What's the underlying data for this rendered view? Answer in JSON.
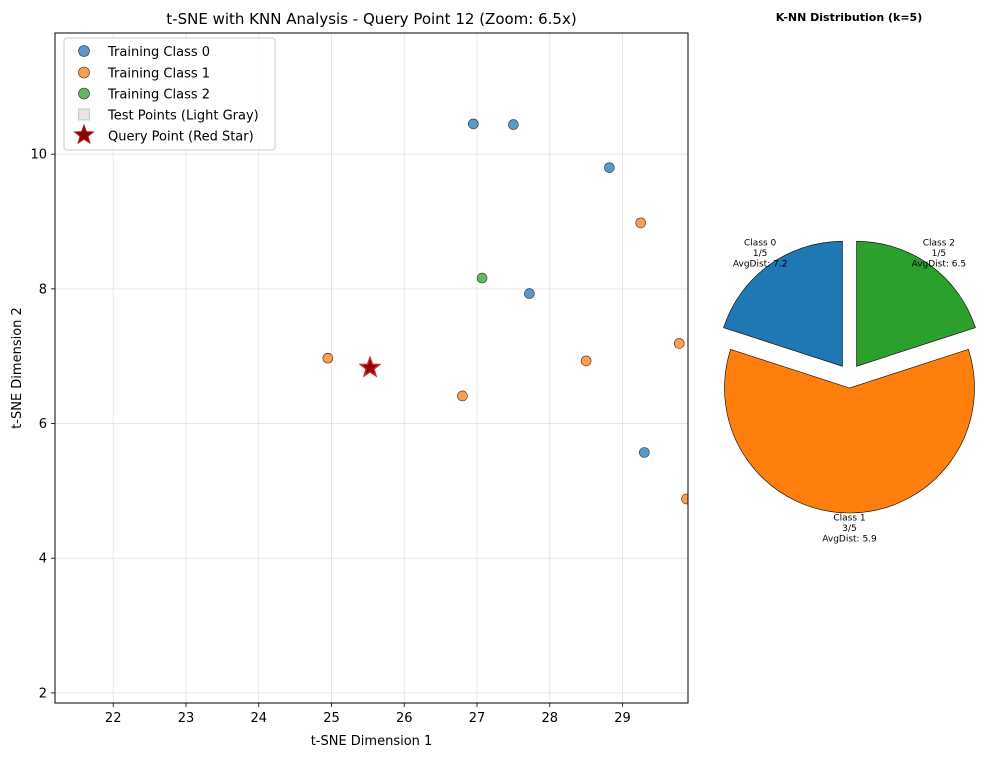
{
  "chart_data": [
    {
      "type": "scatter",
      "title": "t-SNE with KNN Analysis - Query Point 12 (Zoom: 6.5x)",
      "xlabel": "t-SNE Dimension 1",
      "ylabel": "t-SNE Dimension 2",
      "xlim": [
        21.2,
        29.9
      ],
      "ylim": [
        1.85,
        11.8
      ],
      "xticks": [
        22,
        23,
        24,
        25,
        26,
        27,
        28,
        29
      ],
      "yticks": [
        2,
        4,
        6,
        8,
        10
      ],
      "grid": true,
      "legend_placement": "top-left",
      "series": [
        {
          "name": "Training Class 0",
          "color": "#1f77b4",
          "marker": "circle",
          "points": [
            [
              26.95,
              10.45
            ],
            [
              27.5,
              10.44
            ],
            [
              28.82,
              9.8
            ],
            [
              27.72,
              7.93
            ],
            [
              29.3,
              5.57
            ]
          ]
        },
        {
          "name": "Training Class 1",
          "color": "#ff7f0e",
          "marker": "circle",
          "points": [
            [
              29.25,
              8.98
            ],
            [
              24.95,
              6.97
            ],
            [
              28.5,
              6.93
            ],
            [
              29.78,
              7.19
            ],
            [
              26.8,
              6.41
            ],
            [
              29.88,
              4.88
            ]
          ]
        },
        {
          "name": "Training Class 2",
          "color": "#2ca02c",
          "marker": "circle",
          "points": [
            [
              27.07,
              8.16
            ]
          ]
        },
        {
          "name": "Test Points (Light Gray)",
          "color": "#d3d3d3",
          "marker": "square",
          "points": []
        },
        {
          "name": "Query Point (Red Star)",
          "color": "#8b0000",
          "edge_color": "#d62728",
          "marker": "star",
          "points": [
            [
              25.53,
              6.83
            ]
          ]
        }
      ]
    },
    {
      "type": "pie",
      "title": "K-NN Distribution (k=5)",
      "slices": [
        {
          "name": "Class 0",
          "value": 1,
          "count_label": "1/5",
          "avg_label": "AvgDist: 7.2",
          "color": "#1f77b4"
        },
        {
          "name": "Class 1",
          "value": 3,
          "count_label": "3/5",
          "avg_label": "AvgDist: 5.9",
          "color": "#ff7f0e"
        },
        {
          "name": "Class 2",
          "value": 1,
          "count_label": "1/5",
          "avg_label": "AvgDist: 6.5",
          "color": "#2ca02c"
        }
      ],
      "explode": true,
      "start_angle_deg": 90,
      "counterclockwise": true
    }
  ]
}
